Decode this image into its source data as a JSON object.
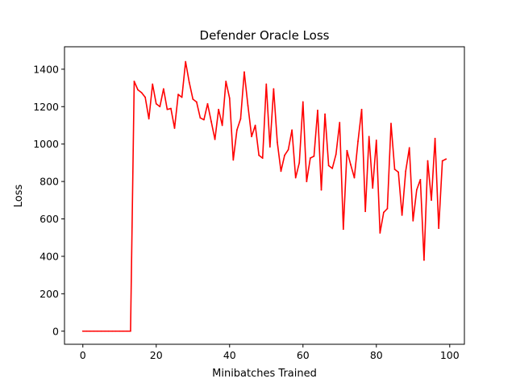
{
  "chart_data": {
    "type": "line",
    "title": "Defender Oracle Loss",
    "xlabel": "Minibatches Trained",
    "ylabel": "Loss",
    "xlim": [
      -5,
      104
    ],
    "ylim": [
      -70,
      1520
    ],
    "xticks": [
      0,
      20,
      40,
      60,
      80,
      100
    ],
    "yticks": [
      0,
      200,
      400,
      600,
      800,
      1000,
      1200,
      1400
    ],
    "grid": false,
    "series": [
      {
        "color": "#ff0000",
        "x": [
          0,
          1,
          2,
          3,
          4,
          5,
          6,
          7,
          8,
          9,
          10,
          11,
          12,
          13,
          14,
          15,
          16,
          17,
          18,
          19,
          20,
          21,
          22,
          23,
          24,
          25,
          26,
          27,
          28,
          29,
          30,
          31,
          32,
          33,
          34,
          35,
          36,
          37,
          38,
          39,
          40,
          41,
          42,
          43,
          44,
          45,
          46,
          47,
          48,
          49,
          50,
          51,
          52,
          53,
          54,
          55,
          56,
          57,
          58,
          59,
          60,
          61,
          62,
          63,
          64,
          65,
          66,
          67,
          68,
          69,
          70,
          71,
          72,
          73,
          74,
          75,
          76,
          77,
          78,
          79,
          80,
          81,
          82,
          83,
          84,
          85,
          86,
          87,
          88,
          89,
          90,
          91,
          92,
          93,
          94,
          95,
          96,
          97,
          98,
          99
        ],
        "y": [
          0,
          0,
          0,
          0,
          0,
          0,
          0,
          0,
          0,
          0,
          0,
          0,
          0,
          0,
          1335,
          1290,
          1275,
          1250,
          1135,
          1320,
          1215,
          1200,
          1295,
          1185,
          1190,
          1085,
          1265,
          1250,
          1440,
          1330,
          1240,
          1225,
          1140,
          1130,
          1215,
          1120,
          1025,
          1185,
          1100,
          1335,
          1245,
          915,
          1075,
          1135,
          1385,
          1205,
          1040,
          1100,
          940,
          925,
          1320,
          985,
          1295,
          1010,
          855,
          940,
          970,
          1075,
          820,
          900,
          1225,
          800,
          925,
          935,
          1180,
          755,
          1160,
          885,
          870,
          945,
          1115,
          545,
          965,
          890,
          820,
          1015,
          1185,
          640,
          1040,
          765,
          1020,
          525,
          635,
          655,
          1110,
          865,
          850,
          620,
          855,
          980,
          590,
          755,
          810,
          380,
          910,
          700,
          1030,
          550,
          910,
          920
        ]
      }
    ]
  }
}
